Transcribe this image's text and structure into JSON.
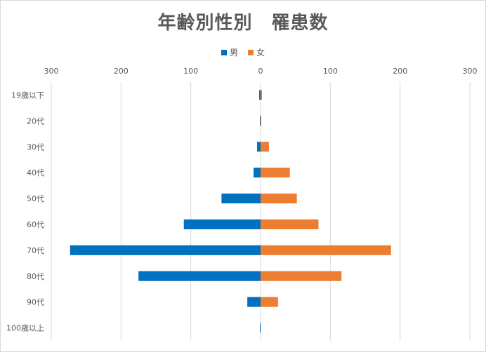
{
  "chart_data": {
    "type": "bar",
    "orientation": "horizontal",
    "title": "年齢別性別　罹患数",
    "categories": [
      "19歳以下",
      "20代",
      "30代",
      "40代",
      "50代",
      "60代",
      "70代",
      "80代",
      "90代",
      "100歳以上"
    ],
    "series": [
      {
        "name": "男",
        "color": "#0070C0",
        "values": [
          -2,
          -1,
          -5,
          -10,
          -56,
          -110,
          -273,
          -175,
          -19,
          -1
        ]
      },
      {
        "name": "女",
        "color": "#ED7D31",
        "values": [
          2,
          1,
          12,
          42,
          52,
          83,
          187,
          116,
          25,
          0
        ]
      }
    ],
    "xaxis_tick_values": [
      -300,
      -200,
      -100,
      0,
      100,
      200,
      300
    ],
    "xaxis_tick_labels": [
      "300",
      "200",
      "100",
      "0",
      "100",
      "200",
      "300"
    ],
    "xaxis_position": "top",
    "xlim": [
      -300,
      300
    ],
    "grid": true,
    "legend_position": "top"
  }
}
